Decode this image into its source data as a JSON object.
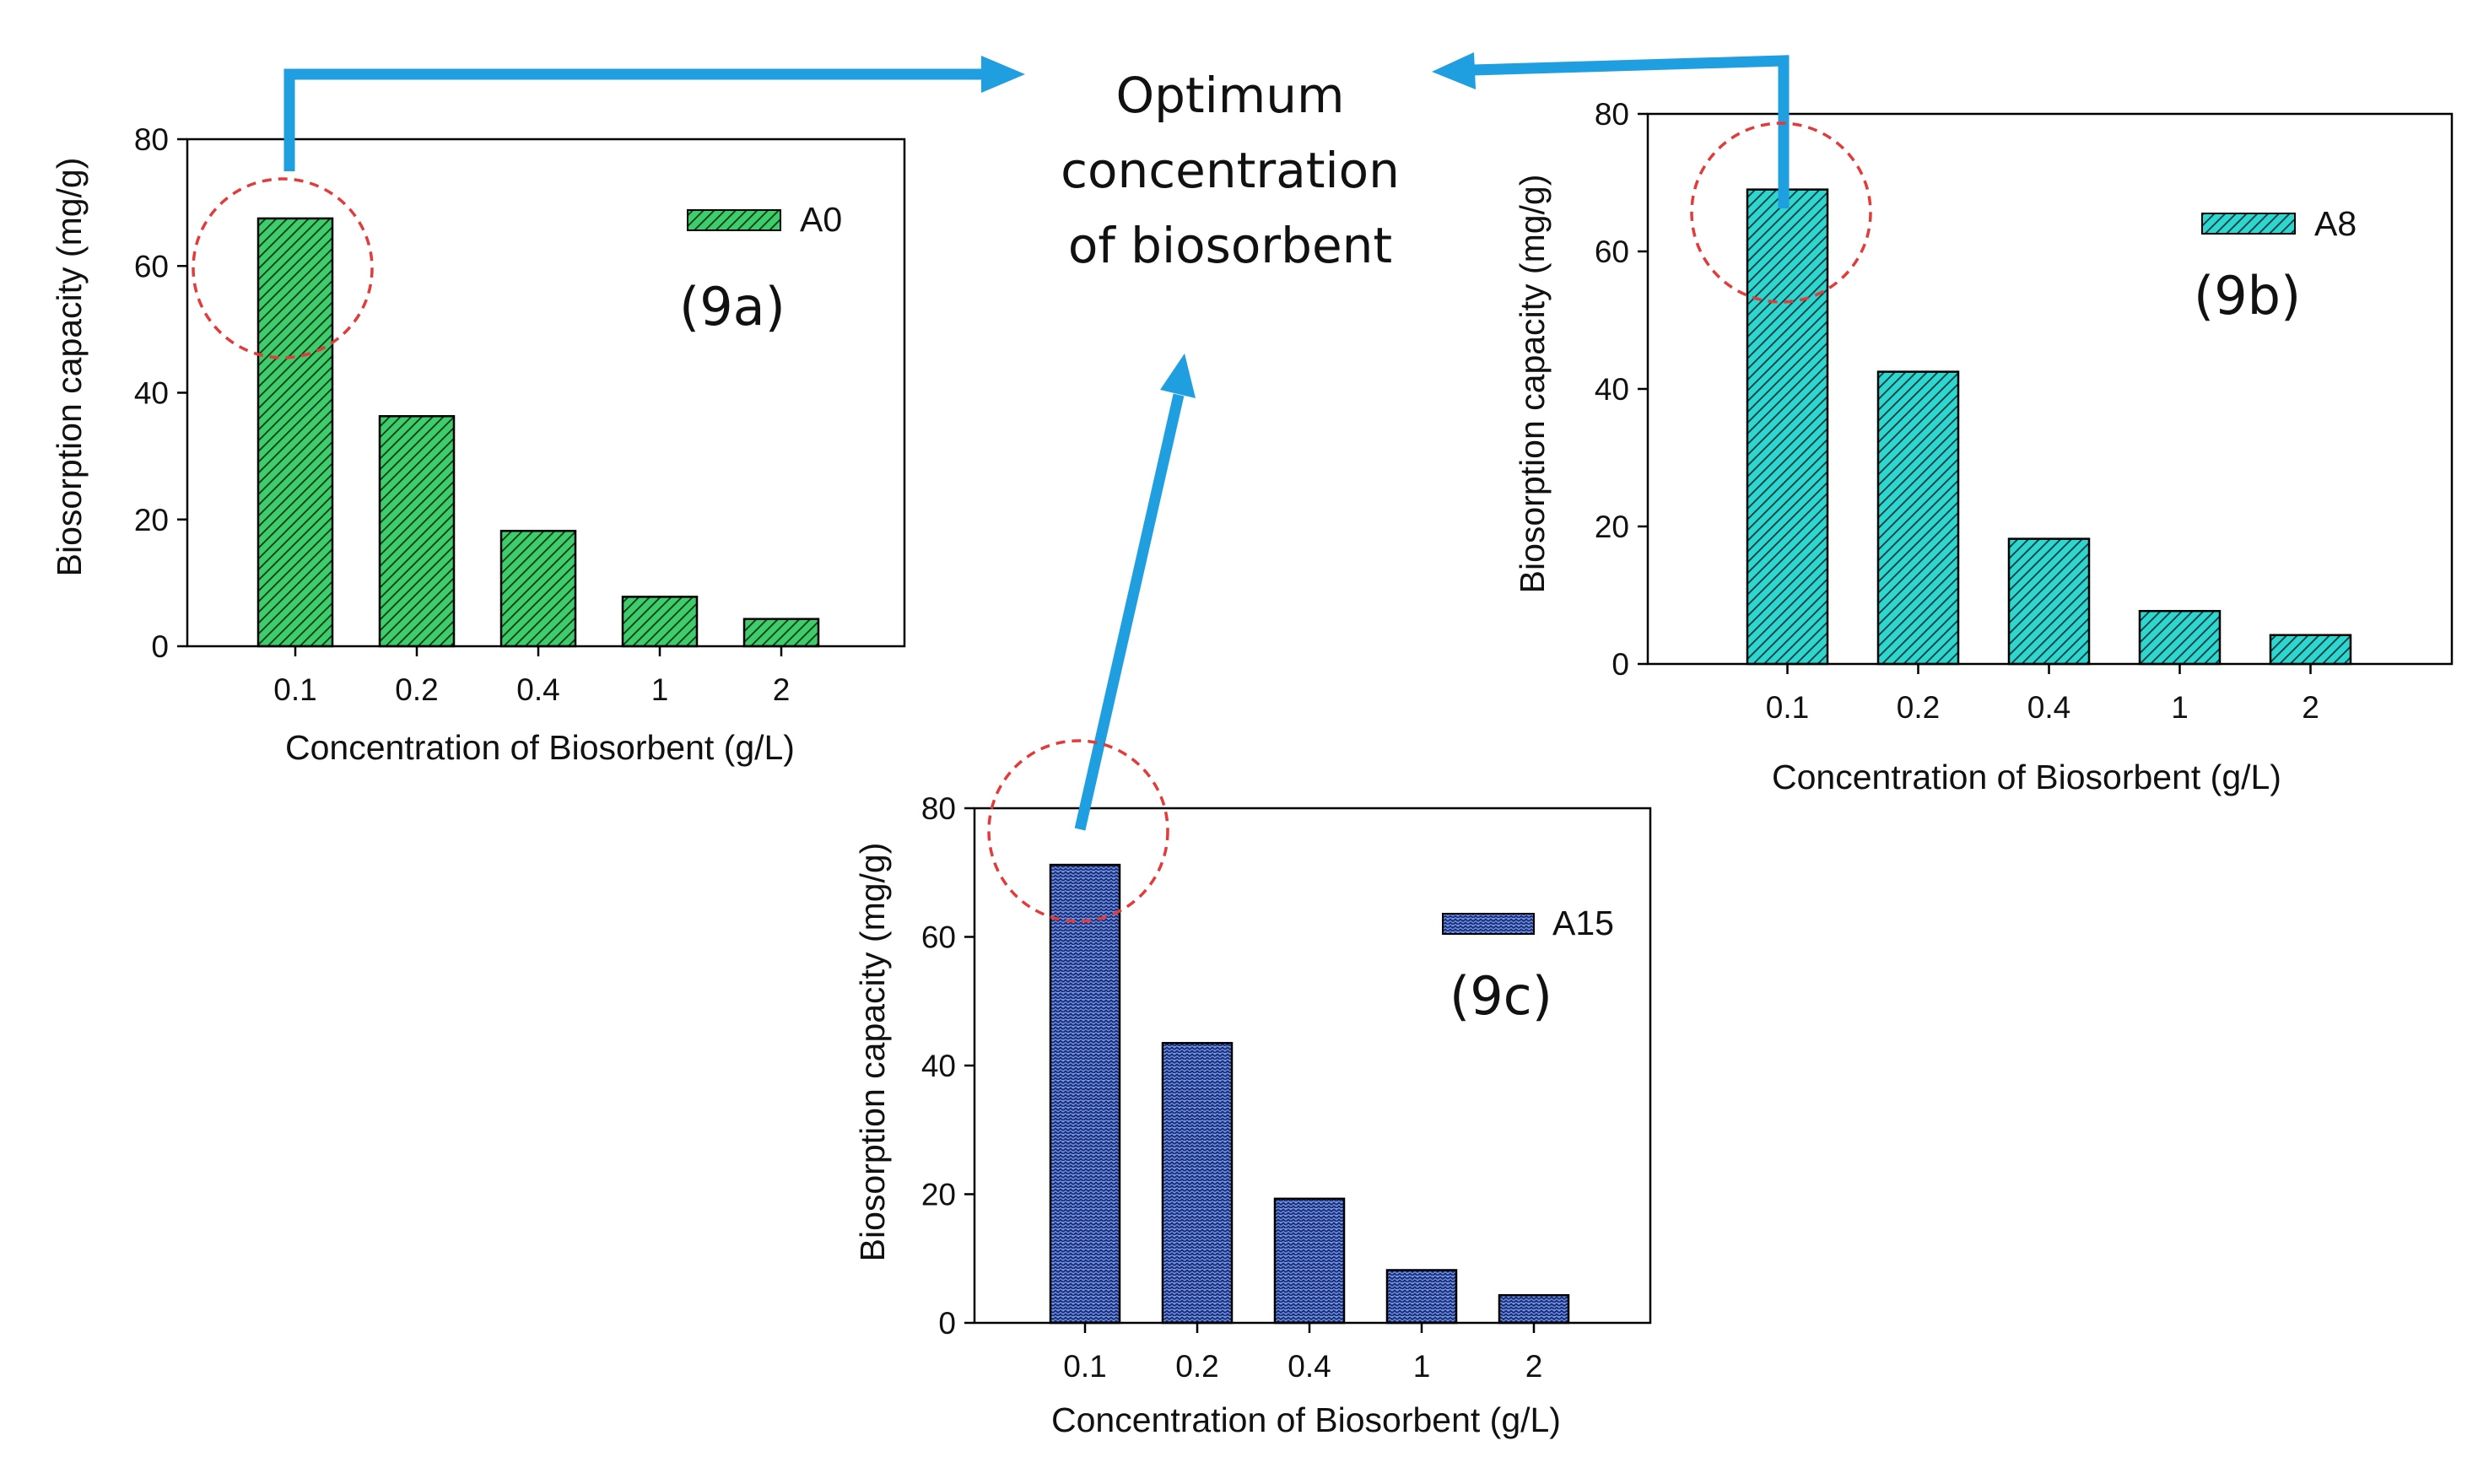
{
  "colors": {
    "green": "#3fcc6b",
    "teal": "#2fd6cf",
    "blue": "#6e93ec",
    "arrow": "#1f9ee0",
    "circle": "#e23b3b"
  },
  "center_label": {
    "line1": "Optimum",
    "line2": "concentration",
    "line3": "of biosorbent"
  },
  "chart_data": [
    {
      "type": "bar",
      "panel": "9a",
      "panel_label": "(9a)",
      "categories": [
        "0.1",
        "0.2",
        "0.4",
        "1",
        "2"
      ],
      "series": [
        {
          "name": "A0",
          "values": [
            67.5,
            36.3,
            18.2,
            7.8,
            4.3
          ]
        }
      ],
      "legend": "A0",
      "xlabel": "Concentration of Biosorbent (g/L)",
      "ylabel": "Biosorption capacity (mg/g)",
      "ylim": [
        0,
        80
      ],
      "yticks": [
        "0",
        "20",
        "40",
        "60",
        "80"
      ],
      "pattern": "diagonal-hatch",
      "color": "#3fcc6b"
    },
    {
      "type": "bar",
      "panel": "9b",
      "panel_label": "(9b)",
      "categories": [
        "0.1",
        "0.2",
        "0.4",
        "1",
        "2"
      ],
      "series": [
        {
          "name": "A8",
          "values": [
            69.0,
            42.5,
            18.2,
            7.7,
            4.2
          ]
        }
      ],
      "legend": "A8",
      "xlabel": "Concentration of Biosorbent (g/L)",
      "ylabel": "Biosorption capacity (mg/g)",
      "ylim": [
        0,
        80
      ],
      "yticks": [
        "0",
        "20",
        "40",
        "60",
        "80"
      ],
      "pattern": "diagonal-hatch",
      "color": "#2fd6cf"
    },
    {
      "type": "bar",
      "panel": "9c",
      "panel_label": "(9c)",
      "categories": [
        "0.1",
        "0.2",
        "0.4",
        "1",
        "2"
      ],
      "series": [
        {
          "name": "A15",
          "values": [
            71.2,
            43.5,
            19.3,
            8.2,
            4.3
          ]
        }
      ],
      "legend": "A15",
      "xlabel": "Concentration of  Biosorbent (g/L)",
      "ylabel": "Biosorption capacity (mg/g)",
      "ylim": [
        0,
        80
      ],
      "yticks": [
        "0",
        "20",
        "40",
        "60",
        "80"
      ],
      "pattern": "wavy",
      "color": "#6e93ec"
    }
  ]
}
